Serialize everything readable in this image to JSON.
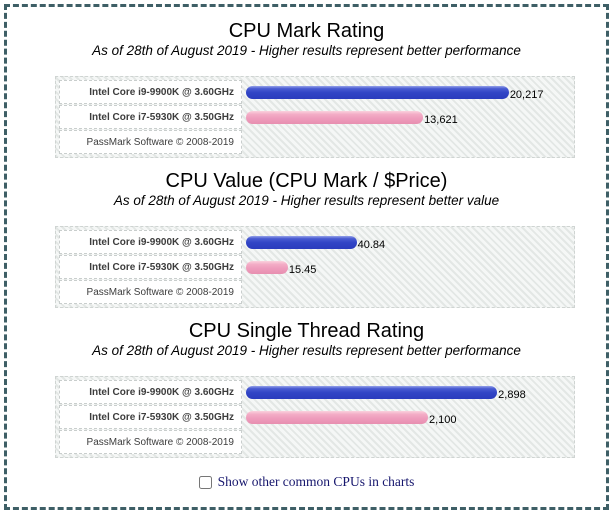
{
  "controls": {
    "checkbox_label": "Show other common CPUs in charts",
    "checkbox_checked": false
  },
  "styles": {
    "frame_border_color": "#3e5f66",
    "blue_bar_color": "#3145c6",
    "pink_bar_color": "#ee9bbb",
    "checkbox_label_color": "#16166d"
  },
  "chart_data": [
    {
      "type": "bar",
      "orientation": "horizontal",
      "title": "CPU Mark Rating",
      "subtitle": "As of 28th of August 2019 - Higher results represent better performance",
      "footer": "PassMark Software © 2008-2019",
      "axis_max": 25000,
      "grid": false,
      "legend": "none",
      "bars": [
        {
          "label": "Intel Core i9-9900K @ 3.60GHz",
          "value": 20217,
          "display": "20,217",
          "color_name": "blue"
        },
        {
          "label": "Intel Core i7-5930K @ 3.50GHz",
          "value": 13621,
          "display": "13,621",
          "color_name": "pink"
        }
      ]
    },
    {
      "type": "bar",
      "orientation": "horizontal",
      "title": "CPU Value (CPU Mark / $Price)",
      "subtitle": "As of 28th of August 2019 - Higher results represent better value",
      "footer": "PassMark Software © 2008-2019",
      "axis_max": 120,
      "grid": false,
      "legend": "none",
      "bars": [
        {
          "label": "Intel Core i9-9900K @ 3.60GHz",
          "value": 40.84,
          "display": "40.84",
          "color_name": "blue"
        },
        {
          "label": "Intel Core i7-5930K @ 3.50GHz",
          "value": 15.45,
          "display": "15.45",
          "color_name": "pink"
        }
      ]
    },
    {
      "type": "bar",
      "orientation": "horizontal",
      "title": "CPU Single Thread Rating",
      "subtitle": "As of 28th of August 2019 - Higher results represent better performance",
      "footer": "PassMark Software © 2008-2019",
      "axis_max": 3750,
      "grid": false,
      "legend": "none",
      "bars": [
        {
          "label": "Intel Core i9-9900K @ 3.60GHz",
          "value": 2898,
          "display": "2,898",
          "color_name": "blue"
        },
        {
          "label": "Intel Core i7-5930K @ 3.50GHz",
          "value": 2100,
          "display": "2,100",
          "color_name": "pink"
        }
      ]
    }
  ]
}
